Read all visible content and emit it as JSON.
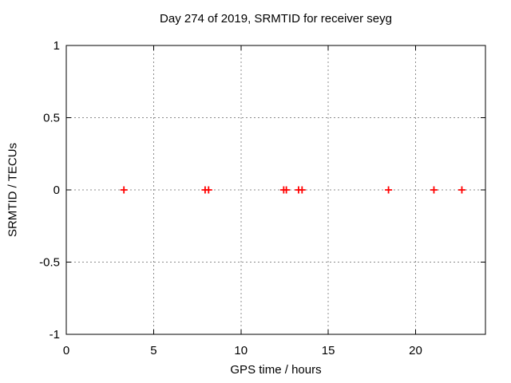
{
  "chart_data": {
    "type": "scatter",
    "title": "Day 274 of 2019, SRMTID for receiver seyg",
    "xlabel": "GPS time / hours",
    "ylabel": "SRMTID / TECUs",
    "xlim": [
      0,
      24
    ],
    "ylim": [
      -1,
      1
    ],
    "xticks": [
      0,
      5,
      10,
      15,
      20
    ],
    "yticks": [
      -1,
      -0.5,
      0,
      0.5,
      1
    ],
    "grid": true,
    "legend": "none",
    "marker": "plus",
    "series": [
      {
        "name": "SRMTID",
        "points": [
          {
            "x": 3.3,
            "y": 0
          },
          {
            "x": 7.95,
            "y": 0
          },
          {
            "x": 8.15,
            "y": 0
          },
          {
            "x": 12.45,
            "y": 0
          },
          {
            "x": 12.6,
            "y": 0
          },
          {
            "x": 13.3,
            "y": 0
          },
          {
            "x": 13.5,
            "y": 0
          },
          {
            "x": 18.45,
            "y": 0
          },
          {
            "x": 21.05,
            "y": 0
          },
          {
            "x": 22.65,
            "y": 0
          }
        ]
      }
    ],
    "colors": {
      "background": "#ffffff",
      "border": "#000000",
      "grid": "#8c8c8c",
      "marker": "#ff0000"
    }
  }
}
